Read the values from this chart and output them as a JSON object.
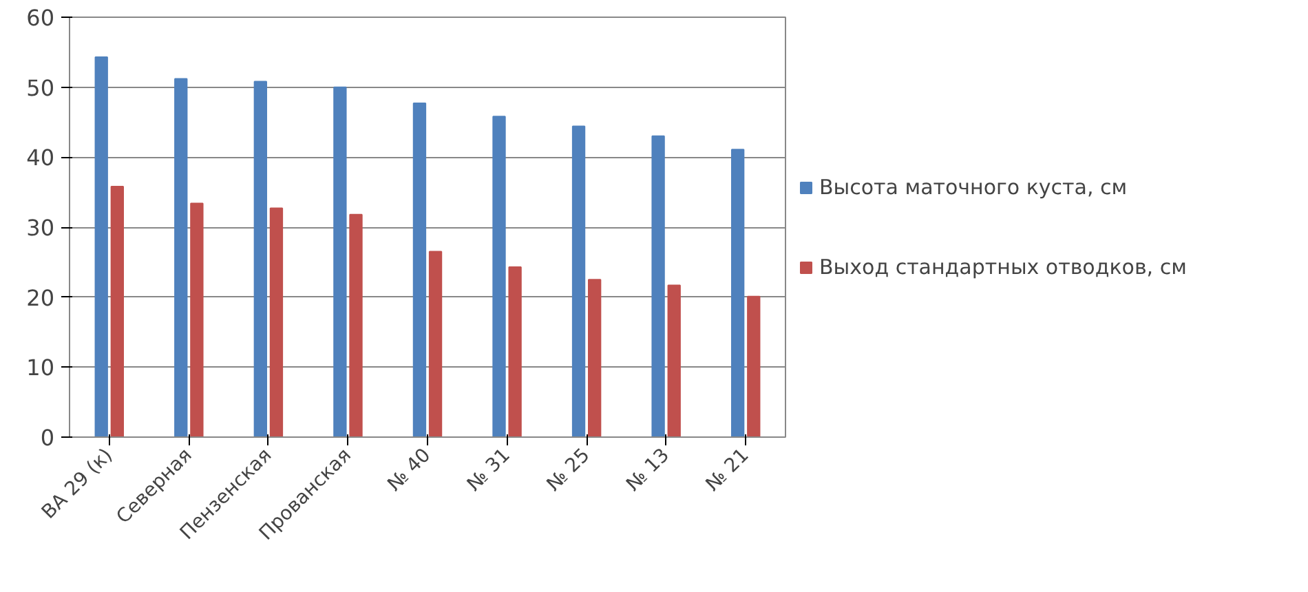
{
  "chart_data": {
    "type": "bar",
    "categories": [
      "ВА 29 (к)",
      "Северная",
      "Пензенская",
      "Прованская",
      "№ 40",
      "№ 31",
      "№ 25",
      "№ 13",
      "№ 21"
    ],
    "series": [
      {
        "name": "Высота маточного куста, см",
        "color": "#4f81bd",
        "values": [
          54.3,
          51.2,
          50.8,
          50.0,
          47.7,
          45.8,
          44.4,
          43.0,
          41.1
        ]
      },
      {
        "name": "Выход стандартных отводков, см",
        "color": "#c0504d",
        "values": [
          35.8,
          33.4,
          32.7,
          31.8,
          26.5,
          24.3,
          22.5,
          21.7,
          20.1
        ]
      }
    ],
    "ylim": [
      0,
      60
    ],
    "yticks": [
      0,
      10,
      20,
      30,
      40,
      50,
      60
    ],
    "grid": "y",
    "legend": "right"
  }
}
